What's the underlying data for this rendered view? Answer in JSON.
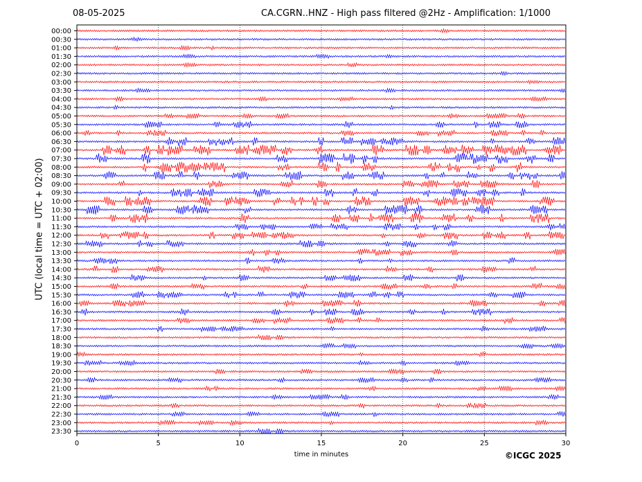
{
  "header": {
    "date": "08-05-2025",
    "title": "CA.CGRN..HNZ - High pass filtered @2Hz - Amplification: 1/1000"
  },
  "footer": {
    "copyright": "©ICGC 2025"
  },
  "colors": {
    "series_a": "#ff0000",
    "series_b": "#0000ff",
    "grid": "#000000"
  },
  "chart_data": {
    "type": "line",
    "title": "CA.CGRN..HNZ - High pass filtered @2Hz - Amplification: 1/1000",
    "xlabel": "time in minutes",
    "ylabel": "UTC (local time = UTC + 02:00)",
    "xlim": [
      0,
      30
    ],
    "x_ticks": [
      0,
      5,
      10,
      15,
      20,
      25,
      30
    ],
    "grid": "vertical dotted at 5-minute ticks",
    "trace_colors": [
      "#ff0000",
      "#0000ff"
    ],
    "rows": [
      "00:00",
      "00:30",
      "01:00",
      "01:30",
      "02:00",
      "02:30",
      "03:00",
      "03:30",
      "04:00",
      "04:30",
      "05:00",
      "05:30",
      "06:00",
      "06:30",
      "07:00",
      "07:30",
      "08:00",
      "08:30",
      "09:00",
      "09:30",
      "10:00",
      "10:30",
      "11:00",
      "11:30",
      "12:00",
      "12:30",
      "13:00",
      "13:30",
      "14:00",
      "14:30",
      "15:00",
      "15:30",
      "16:00",
      "16:30",
      "17:00",
      "17:30",
      "18:00",
      "18:30",
      "19:00",
      "19:30",
      "20:00",
      "20:30",
      "21:00",
      "21:30",
      "22:00",
      "22:30",
      "23:00",
      "23:30"
    ],
    "activity": [
      0,
      0,
      0,
      0,
      0,
      0,
      0,
      0,
      0,
      0,
      1,
      3,
      2,
      5,
      7,
      7,
      7,
      5,
      4,
      5,
      6,
      6,
      6,
      3,
      4,
      3,
      3,
      3,
      3,
      3,
      2,
      3,
      3,
      3,
      2,
      2,
      1,
      1,
      1,
      1,
      1,
      1,
      1,
      1,
      1,
      1,
      1,
      1
    ]
  }
}
